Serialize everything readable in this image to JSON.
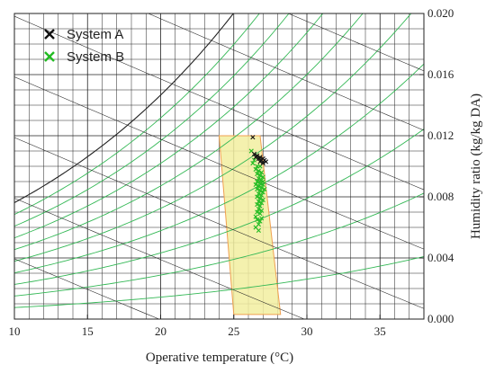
{
  "chart_data": {
    "type": "scatter",
    "title": "",
    "xlabel": "Operative temperature (°C)",
    "ylabel": "Humidity ratio (kg/kg DA)",
    "xlim": [
      10,
      38
    ],
    "ylim": [
      0.0,
      0.02
    ],
    "x_ticks": [
      10,
      15,
      20,
      25,
      30,
      35
    ],
    "y_ticks": [
      0.0,
      0.004,
      0.008,
      0.012,
      0.016,
      0.02
    ],
    "y_tick_labels": [
      "0.000",
      "0.004",
      "0.008",
      "0.012",
      "0.016",
      "0.020"
    ],
    "y_axis_side": "right",
    "legend_placement": "top-left",
    "comfort_zone": {
      "polygon": [
        [
          24.0,
          0.012
        ],
        [
          26.8,
          0.012
        ],
        [
          28.2,
          0.0003
        ],
        [
          25.0,
          0.0003
        ]
      ],
      "fill": "#f2eea0",
      "stroke": "#f0a050"
    },
    "series": [
      {
        "name": "System A",
        "marker": "x",
        "color": "#111111",
        "points": [
          [
            26.3,
            0.0119
          ],
          [
            26.4,
            0.0108
          ],
          [
            26.6,
            0.0107
          ],
          [
            26.8,
            0.0106
          ],
          [
            27.0,
            0.0105
          ],
          [
            26.7,
            0.0105
          ],
          [
            26.9,
            0.0104
          ],
          [
            27.1,
            0.0104
          ],
          [
            26.5,
            0.0106
          ],
          [
            27.2,
            0.0103
          ],
          [
            26.8,
            0.0103
          ],
          [
            27.0,
            0.0102
          ]
        ]
      },
      {
        "name": "System B",
        "marker": "x",
        "color": "#22bb22",
        "points": [
          [
            26.2,
            0.011
          ],
          [
            26.4,
            0.0104
          ],
          [
            26.3,
            0.0102
          ],
          [
            26.6,
            0.01
          ],
          [
            26.8,
            0.01
          ],
          [
            26.5,
            0.0098
          ],
          [
            26.7,
            0.0097
          ],
          [
            26.9,
            0.0096
          ],
          [
            26.6,
            0.0095
          ],
          [
            26.8,
            0.0094
          ],
          [
            27.0,
            0.0093
          ],
          [
            26.7,
            0.0092
          ],
          [
            26.9,
            0.0091
          ],
          [
            26.6,
            0.009
          ],
          [
            26.8,
            0.0089
          ],
          [
            27.0,
            0.0088
          ],
          [
            26.7,
            0.0087
          ],
          [
            26.9,
            0.0086
          ],
          [
            26.6,
            0.0085
          ],
          [
            26.8,
            0.0084
          ],
          [
            27.0,
            0.0083
          ],
          [
            26.7,
            0.0082
          ],
          [
            26.9,
            0.0081
          ],
          [
            26.6,
            0.008
          ],
          [
            26.8,
            0.0079
          ],
          [
            27.0,
            0.0078
          ],
          [
            26.7,
            0.0077
          ],
          [
            26.9,
            0.0076
          ],
          [
            26.6,
            0.0075
          ],
          [
            26.8,
            0.0074
          ],
          [
            26.7,
            0.0072
          ],
          [
            26.9,
            0.0071
          ],
          [
            26.6,
            0.007
          ],
          [
            26.8,
            0.0069
          ],
          [
            26.5,
            0.0067
          ],
          [
            26.9,
            0.0066
          ],
          [
            26.6,
            0.0065
          ],
          [
            26.8,
            0.0064
          ],
          [
            26.7,
            0.0062
          ],
          [
            26.7,
            0.0058
          ],
          [
            26.5,
            0.006
          ],
          [
            27.0,
            0.009
          ],
          [
            27.1,
            0.0085
          ],
          [
            26.5,
            0.0088
          ]
        ]
      }
    ]
  }
}
